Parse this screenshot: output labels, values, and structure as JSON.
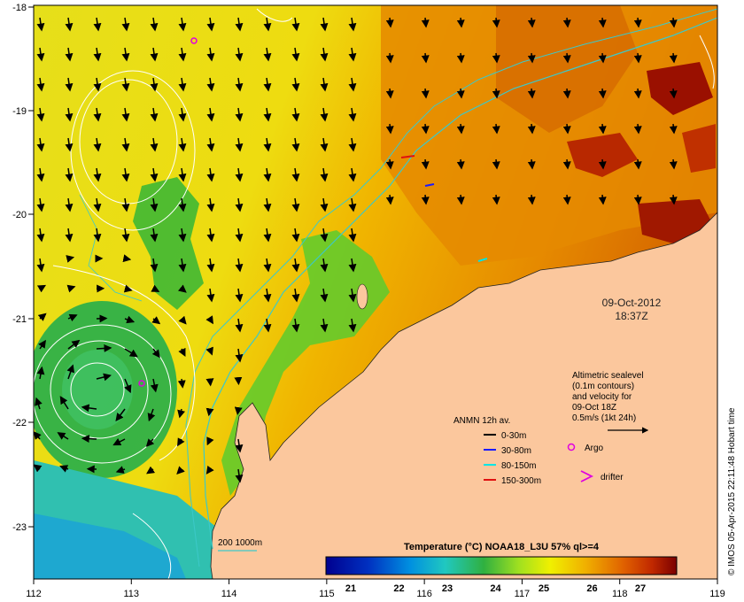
{
  "map": {
    "lon_ticks": [
      "112",
      "113",
      "114",
      "115",
      "116",
      "117",
      "118",
      "119"
    ],
    "lat_ticks": [
      "-18",
      "-19",
      "-20",
      "-21",
      "-22",
      "-23"
    ],
    "date": "09-Oct-2012",
    "time": "18:37Z",
    "altimetry_note": [
      "Altimetric sealevel",
      "(0.1m contours)",
      "and velocity for",
      "09-Oct 18Z",
      "0.5m/s (1kt 24h)"
    ],
    "argo_label": "Argo",
    "drifter_label": "drifter",
    "anmn_title": "ANMN 12h av.",
    "anmn_depths": [
      {
        "label": "0-30m",
        "color": "#000000"
      },
      {
        "label": "30-80m",
        "color": "#1a1aff"
      },
      {
        "label": "80-150m",
        "color": "#00e5e5"
      },
      {
        "label": "150-300m",
        "color": "#e01010"
      }
    ],
    "isobath_label": "200  1000m",
    "credit": "© IMOS 05-Apr-2015 22:11:48 Hobart time",
    "colorbar": {
      "title": "Temperature (°C) NOAA18_L3U 57% ql>=4",
      "ticks": [
        "21",
        "22",
        "23",
        "24",
        "25",
        "26",
        "27"
      ]
    },
    "colors": {
      "land": "#fbc79d",
      "isobath": "#3cc9c9",
      "contour": "#ffffff",
      "argo": "#e000e0"
    }
  }
}
